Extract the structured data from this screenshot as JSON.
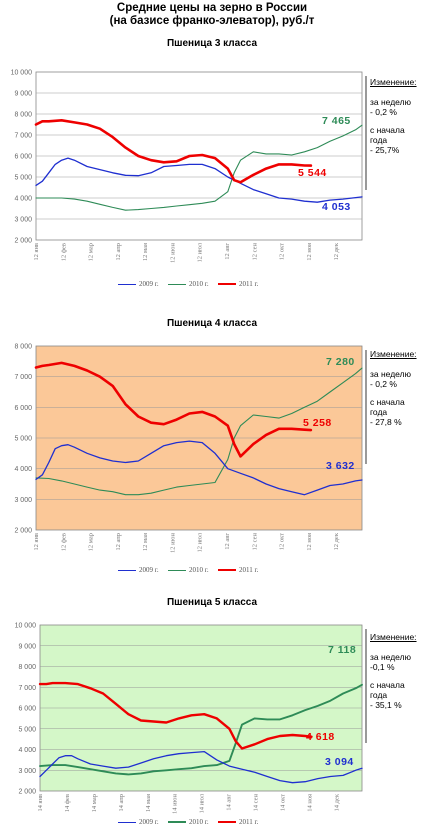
{
  "page_title": [
    "Средние цены на зерно в России",
    "(на базисе франко-элеватор), руб./т"
  ],
  "colors": {
    "y2009": "#1f2fd0",
    "y2010": "#2e8b57",
    "y2011": "#ee0000",
    "green_label": "#2e8b57"
  },
  "chart_data": [
    {
      "type": "line",
      "title": "Пшеница 3  класса",
      "background": "#ffffff",
      "ylim": [
        2000,
        10000
      ],
      "yticks": [
        "2 000",
        "3 000",
        "4 000",
        "5 000",
        "6 000",
        "7 000",
        "8 000",
        "9 000",
        "10 000"
      ],
      "ytick_values": [
        2000,
        3000,
        4000,
        5000,
        6000,
        7000,
        8000,
        9000,
        10000
      ],
      "xticks": [
        "12 янв",
        "12 фев",
        "12 мар",
        "12 апр",
        "12 мая",
        "12 июн",
        "12 июл",
        "12 авг",
        "12 сен",
        "12 окт",
        "12 ноя",
        "12 дек"
      ],
      "x_range": [
        0,
        51
      ],
      "series": [
        {
          "name": "2009 г.",
          "key": "y2009",
          "x": [
            0,
            1,
            2,
            3,
            4,
            5,
            6,
            8,
            10,
            12,
            14,
            16,
            18,
            20,
            22,
            24,
            26,
            28,
            30,
            32,
            34,
            36,
            38,
            40,
            42,
            44,
            46,
            48,
            50,
            51
          ],
          "values": [
            4600,
            4800,
            5200,
            5600,
            5800,
            5900,
            5800,
            5500,
            5350,
            5200,
            5080,
            5060,
            5200,
            5500,
            5550,
            5600,
            5600,
            5400,
            5000,
            4700,
            4400,
            4200,
            4000,
            3950,
            3850,
            3800,
            3900,
            3950,
            4020,
            4053
          ]
        },
        {
          "name": "2010 г.",
          "key": "y2010",
          "x": [
            0,
            2,
            4,
            6,
            8,
            10,
            12,
            14,
            16,
            18,
            20,
            22,
            24,
            26,
            28,
            30,
            31,
            32,
            34,
            36,
            38,
            40,
            42,
            44,
            46,
            48,
            50,
            51
          ],
          "values": [
            4000,
            4000,
            4000,
            3950,
            3850,
            3700,
            3550,
            3420,
            3450,
            3500,
            3550,
            3620,
            3680,
            3750,
            3850,
            4300,
            5200,
            5800,
            6200,
            6100,
            6100,
            6050,
            6200,
            6400,
            6700,
            6950,
            7250,
            7465
          ]
        },
        {
          "name": "2011 г.",
          "key": "y2011",
          "x": [
            0,
            1,
            2,
            4,
            6,
            8,
            10,
            12,
            14,
            16,
            18,
            20,
            22,
            24,
            26,
            28,
            30,
            31,
            32,
            34,
            36,
            38,
            40,
            42,
            43
          ],
          "values": [
            7500,
            7650,
            7650,
            7700,
            7600,
            7500,
            7300,
            6900,
            6400,
            6000,
            5800,
            5700,
            5750,
            6000,
            6050,
            5900,
            5400,
            4850,
            4750,
            5100,
            5400,
            5600,
            5600,
            5550,
            5544
          ]
        }
      ],
      "end_labels": [
        "7 465",
        "5 544",
        "4 053"
      ],
      "legend": [
        "2009 г.",
        "2010 г.",
        "2011 г."
      ],
      "legend_position": "bottom",
      "notes": {
        "heading": "Изменение:",
        "week_label": "за  неделю",
        "week_value": "- 0,2 %",
        "ytd_label": [
          "с начала",
          "года"
        ],
        "ytd_value": "- 25,7%"
      }
    },
    {
      "type": "line",
      "title": "Пшеница 4 класса",
      "background": "#fbc898",
      "ylim": [
        2000,
        8000
      ],
      "yticks": [
        "2 000",
        "3 000",
        "4 000",
        "5 000",
        "6 000",
        "7 000",
        "8 000"
      ],
      "ytick_values": [
        2000,
        3000,
        4000,
        5000,
        6000,
        7000,
        8000
      ],
      "xticks": [
        "12 янв",
        "12 фев",
        "12 мар",
        "12 апр",
        "12 мая",
        "12 июн",
        "12 июл",
        "12 авг",
        "12 сен",
        "12 окт",
        "12 ноя",
        "12 дек"
      ],
      "x_range": [
        0,
        51
      ],
      "series": [
        {
          "name": "2009 г.",
          "key": "y2009",
          "x": [
            0,
            1,
            2,
            3,
            4,
            5,
            6,
            8,
            10,
            12,
            14,
            16,
            18,
            20,
            22,
            24,
            26,
            28,
            30,
            32,
            34,
            36,
            38,
            40,
            42,
            44,
            46,
            48,
            50,
            51
          ],
          "values": [
            3650,
            3800,
            4200,
            4650,
            4750,
            4780,
            4700,
            4500,
            4350,
            4250,
            4200,
            4250,
            4500,
            4750,
            4850,
            4900,
            4850,
            4500,
            4000,
            3850,
            3700,
            3500,
            3350,
            3250,
            3150,
            3300,
            3450,
            3500,
            3600,
            3632
          ]
        },
        {
          "name": "2010 г.",
          "key": "y2010",
          "x": [
            0,
            2,
            4,
            6,
            8,
            10,
            12,
            14,
            16,
            18,
            20,
            22,
            24,
            26,
            28,
            30,
            31,
            32,
            34,
            36,
            38,
            40,
            42,
            44,
            46,
            48,
            50,
            51
          ],
          "values": [
            3700,
            3680,
            3600,
            3500,
            3400,
            3300,
            3250,
            3150,
            3150,
            3200,
            3300,
            3400,
            3450,
            3500,
            3550,
            4300,
            5000,
            5400,
            5750,
            5700,
            5650,
            5800,
            6000,
            6200,
            6500,
            6800,
            7100,
            7280
          ]
        },
        {
          "name": "2011 г.",
          "key": "y2011",
          "x": [
            0,
            1,
            2,
            4,
            6,
            8,
            10,
            12,
            14,
            16,
            18,
            20,
            22,
            24,
            26,
            28,
            30,
            31,
            32,
            34,
            36,
            38,
            40,
            42,
            43
          ],
          "values": [
            7300,
            7350,
            7380,
            7450,
            7350,
            7200,
            7000,
            6700,
            6100,
            5700,
            5500,
            5450,
            5600,
            5800,
            5850,
            5700,
            5400,
            4800,
            4400,
            4800,
            5100,
            5300,
            5300,
            5270,
            5258
          ]
        }
      ],
      "end_labels": [
        "7 280",
        "5 258",
        "3 632"
      ],
      "legend": [
        "2009 г.",
        "2010 г.",
        "2011 г."
      ],
      "legend_position": "bottom",
      "notes": {
        "heading": "Изменение:",
        "week_label": "за  неделю",
        "week_value": "- 0,2 %",
        "ytd_label": [
          "с начала",
          "года"
        ],
        "ytd_value": "- 27,8 %"
      }
    },
    {
      "type": "line",
      "title": "Пшеница 5 класса",
      "background": "#d4f7c8",
      "ylim": [
        2000,
        10000
      ],
      "yticks": [
        "2 000",
        "3 000",
        "4 000",
        "5 000",
        "6 000",
        "7 000",
        "8 000",
        "9 000",
        "10 000"
      ],
      "ytick_values": [
        2000,
        3000,
        4000,
        5000,
        6000,
        7000,
        8000,
        9000,
        10000
      ],
      "xticks": [
        "14 янв",
        "14 фев",
        "14 мар",
        "14 апр",
        "14 мая",
        "14 июн",
        "14 июл",
        "14 авг",
        "14 сен",
        "14 окт",
        "14 ноя",
        "14 дек"
      ],
      "x_range": [
        0,
        51
      ],
      "series": [
        {
          "name": "2009 г.",
          "key": "y2009",
          "x": [
            0,
            1,
            2,
            3,
            4,
            5,
            6,
            8,
            10,
            12,
            14,
            16,
            18,
            20,
            22,
            24,
            26,
            28,
            30,
            32,
            34,
            36,
            38,
            40,
            42,
            44,
            46,
            48,
            50,
            51
          ],
          "values": [
            2700,
            3000,
            3300,
            3600,
            3700,
            3700,
            3550,
            3300,
            3200,
            3100,
            3150,
            3350,
            3550,
            3700,
            3800,
            3850,
            3900,
            3500,
            3200,
            3050,
            2900,
            2700,
            2500,
            2400,
            2450,
            2600,
            2700,
            2750,
            3000,
            3094
          ]
        },
        {
          "name": "2010 г.",
          "key": "y2010",
          "x": [
            0,
            2,
            4,
            6,
            8,
            10,
            12,
            14,
            16,
            18,
            20,
            22,
            24,
            26,
            28,
            30,
            31,
            32,
            34,
            36,
            38,
            40,
            42,
            44,
            46,
            48,
            50,
            51
          ],
          "values": [
            3200,
            3250,
            3250,
            3150,
            3050,
            2950,
            2850,
            2800,
            2850,
            2950,
            3000,
            3050,
            3100,
            3200,
            3250,
            3450,
            4300,
            5200,
            5500,
            5450,
            5450,
            5650,
            5900,
            6100,
            6350,
            6700,
            6950,
            7118
          ]
        },
        {
          "name": "2011 г.",
          "key": "y2011",
          "x": [
            0,
            1,
            2,
            4,
            6,
            8,
            10,
            12,
            14,
            16,
            18,
            20,
            22,
            24,
            26,
            28,
            30,
            31,
            32,
            34,
            36,
            38,
            40,
            42,
            43
          ],
          "values": [
            7150,
            7150,
            7200,
            7200,
            7150,
            6950,
            6700,
            6200,
            5700,
            5400,
            5350,
            5300,
            5500,
            5650,
            5700,
            5500,
            5000,
            4400,
            4050,
            4250,
            4500,
            4650,
            4700,
            4650,
            4618
          ]
        }
      ],
      "end_labels": [
        "7 118",
        "4 618",
        "3 094"
      ],
      "legend": [
        "2009 г.",
        "2010 г.",
        "2011 г."
      ],
      "legend_position": "bottom",
      "notes": {
        "heading": "Изменение:",
        "week_label": "за  неделю",
        "week_value": "-0,1 %",
        "ytd_label": [
          "с начала",
          "года"
        ],
        "ytd_value": "- 35,1 %"
      }
    }
  ]
}
